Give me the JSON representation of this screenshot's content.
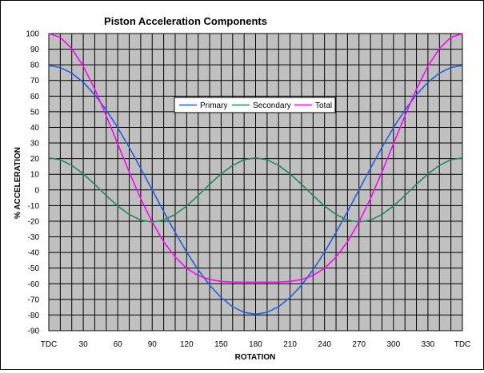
{
  "chart_data": {
    "type": "line",
    "title": "Piston Acceleration Components",
    "xlabel": "ROTATION",
    "ylabel": "% ACCELERATION",
    "xlim": [
      0,
      360
    ],
    "ylim": [
      -90,
      100
    ],
    "x_ticks": [
      {
        "value": 0,
        "label": "TDC"
      },
      {
        "value": 30,
        "label": "30"
      },
      {
        "value": 60,
        "label": "60"
      },
      {
        "value": 90,
        "label": "90"
      },
      {
        "value": 120,
        "label": "120"
      },
      {
        "value": 150,
        "label": "150"
      },
      {
        "value": 180,
        "label": "180"
      },
      {
        "value": 210,
        "label": "210"
      },
      {
        "value": 240,
        "label": "240"
      },
      {
        "value": 270,
        "label": "270"
      },
      {
        "value": 300,
        "label": "300"
      },
      {
        "value": 330,
        "label": "330"
      },
      {
        "value": 360,
        "label": "TDC"
      }
    ],
    "y_ticks": [
      100,
      90,
      80,
      70,
      60,
      50,
      40,
      30,
      20,
      10,
      0,
      -10,
      -20,
      -30,
      -40,
      -50,
      -60,
      -70,
      -80,
      -90
    ],
    "grid": true,
    "legend_position": "top-center",
    "x": [
      0,
      10,
      20,
      30,
      40,
      50,
      60,
      70,
      80,
      90,
      100,
      110,
      120,
      130,
      140,
      150,
      160,
      170,
      180,
      190,
      200,
      210,
      220,
      230,
      240,
      250,
      260,
      270,
      280,
      290,
      300,
      310,
      320,
      330,
      340,
      350,
      360
    ],
    "series": [
      {
        "name": "Primary",
        "color": "#1f5fe0",
        "values": [
          79.5,
          78.3,
          74.7,
          68.8,
          60.9,
          51.1,
          39.8,
          27.2,
          13.8,
          0,
          -13.8,
          -27.2,
          -39.8,
          -51.1,
          -60.9,
          -68.8,
          -74.7,
          -78.3,
          -79.5,
          -78.3,
          -74.7,
          -68.8,
          -60.9,
          -51.1,
          -39.8,
          -27.2,
          -13.8,
          0,
          13.8,
          27.2,
          39.8,
          51.1,
          60.9,
          68.8,
          74.7,
          78.3,
          79.5
        ]
      },
      {
        "name": "Secondary",
        "color": "#1f8a5a",
        "values": [
          20.5,
          19.3,
          15.7,
          10.3,
          3.6,
          -3.6,
          -10.3,
          -15.7,
          -19.3,
          -20.5,
          -19.3,
          -15.7,
          -10.3,
          -3.6,
          3.6,
          10.3,
          15.7,
          19.3,
          20.5,
          19.3,
          15.7,
          10.3,
          3.6,
          -3.6,
          -10.3,
          -15.7,
          -19.3,
          -20.5,
          -19.3,
          -15.7,
          -10.3,
          -3.6,
          3.6,
          10.3,
          15.7,
          19.3,
          20.5
        ]
      },
      {
        "name": "Total",
        "color": "#ff00ff",
        "values": [
          100,
          97.6,
          90.4,
          79.1,
          64.5,
          47.5,
          29.5,
          11.5,
          -5.5,
          -20.5,
          -33.1,
          -42.9,
          -50.1,
          -54.7,
          -57.3,
          -58.5,
          -59,
          -59,
          -59,
          -59,
          -59,
          -58.5,
          -57.3,
          -54.7,
          -50.1,
          -42.9,
          -33.1,
          -20.5,
          -5.5,
          11.5,
          29.5,
          47.5,
          64.5,
          79.1,
          90.4,
          97.6,
          100
        ]
      }
    ]
  }
}
